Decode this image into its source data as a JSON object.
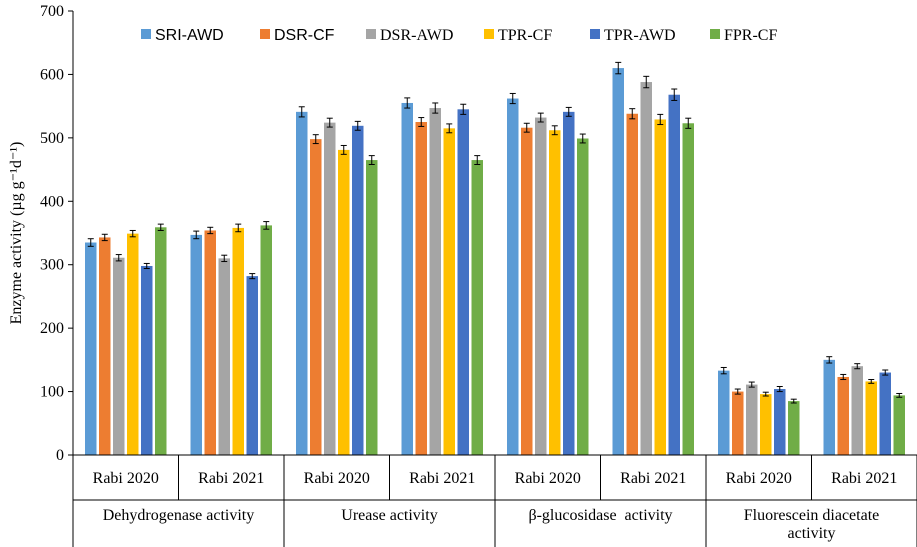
{
  "chart_data": {
    "type": "bar",
    "title": "",
    "ylabel": "Enzyme activity (µg g⁻¹d⁻¹)",
    "ylim": [
      0,
      700
    ],
    "yticks": [
      0,
      100,
      200,
      300,
      400,
      500,
      600,
      700
    ],
    "grid": false,
    "legend_position": "top",
    "groups": [
      {
        "name": "Dehydrogenase activity",
        "categories": [
          "Rabi 2020",
          "Rabi 2021"
        ]
      },
      {
        "name": "Urease activity",
        "categories": [
          "Rabi 2020",
          "Rabi 2021"
        ]
      },
      {
        "name": "β-glucosidase  activity",
        "categories": [
          "Rabi 2020",
          "Rabi 2021"
        ]
      },
      {
        "name": "Fluorescein diacetate activity",
        "categories": [
          "Rabi 2020",
          "Rabi 2021"
        ]
      }
    ],
    "series": [
      {
        "name": "SRI-AWD",
        "color": "#5B9BD5",
        "values": [
          335,
          347,
          541,
          555,
          562,
          610,
          133,
          150
        ],
        "errors": [
          6,
          6,
          8,
          8,
          8,
          9,
          5,
          5
        ]
      },
      {
        "name": "DSR-CF",
        "color": "#ED7D31",
        "values": [
          343,
          354,
          498,
          525,
          516,
          538,
          100,
          123
        ],
        "errors": [
          5,
          5,
          7,
          7,
          7,
          8,
          4,
          4
        ]
      },
      {
        "name": "DSR-AWD",
        "color": "#A5A5A5",
        "values": [
          311,
          310,
          524,
          547,
          532,
          588,
          111,
          140
        ],
        "errors": [
          5,
          5,
          7,
          8,
          7,
          9,
          4,
          4
        ]
      },
      {
        "name": "TPR-CF",
        "color": "#FFC000",
        "values": [
          349,
          358,
          481,
          515,
          512,
          529,
          96,
          116
        ],
        "errors": [
          5,
          6,
          7,
          7,
          7,
          8,
          3,
          3
        ]
      },
      {
        "name": "TPR-AWD",
        "color": "#4472C4",
        "values": [
          298,
          282,
          519,
          545,
          541,
          568,
          104,
          130
        ],
        "errors": [
          4,
          4,
          7,
          8,
          7,
          9,
          4,
          4
        ]
      },
      {
        "name": "FPR-CF",
        "color": "#70AD47",
        "values": [
          359,
          362,
          465,
          465,
          499,
          523,
          85,
          94
        ],
        "errors": [
          5,
          6,
          7,
          7,
          7,
          8,
          3,
          3
        ]
      }
    ]
  }
}
